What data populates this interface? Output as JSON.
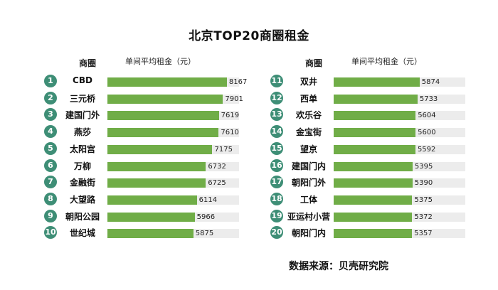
{
  "chart_data": {
    "type": "bar",
    "title": "北京TOP20商圈租金",
    "column_headers": {
      "name": "商圈",
      "value": "单间平均租金（元）"
    },
    "xlim": [
      0,
      9000
    ],
    "panels": [
      {
        "ranks": [
          "1",
          "2",
          "3",
          "4",
          "5",
          "6",
          "7",
          "8",
          "9",
          "10"
        ],
        "categories": [
          "CBD",
          "三元桥",
          "建国门外",
          "燕莎",
          "太阳宫",
          "万柳",
          "金融街",
          "大望路",
          "朝阳公园",
          "世纪城"
        ],
        "values": [
          8167,
          7901,
          7619,
          7610,
          7175,
          6732,
          6725,
          6114,
          5966,
          5875
        ]
      },
      {
        "ranks": [
          "11",
          "12",
          "13",
          "14",
          "15",
          "16",
          "17",
          "18",
          "19",
          "20"
        ],
        "categories": [
          "双井",
          "西单",
          "欢乐谷",
          "金宝街",
          "望京",
          "建国门内",
          "朝阳门外",
          "工体",
          "亚运村小营",
          "朝阳门内"
        ],
        "values": [
          5874,
          5733,
          5604,
          5600,
          5592,
          5395,
          5390,
          5375,
          5372,
          5357
        ]
      }
    ],
    "colors": {
      "bar": "#70ad47",
      "track": "#ececec",
      "badge": "#3e8e76"
    }
  },
  "source": "数据来源：贝壳研究院"
}
